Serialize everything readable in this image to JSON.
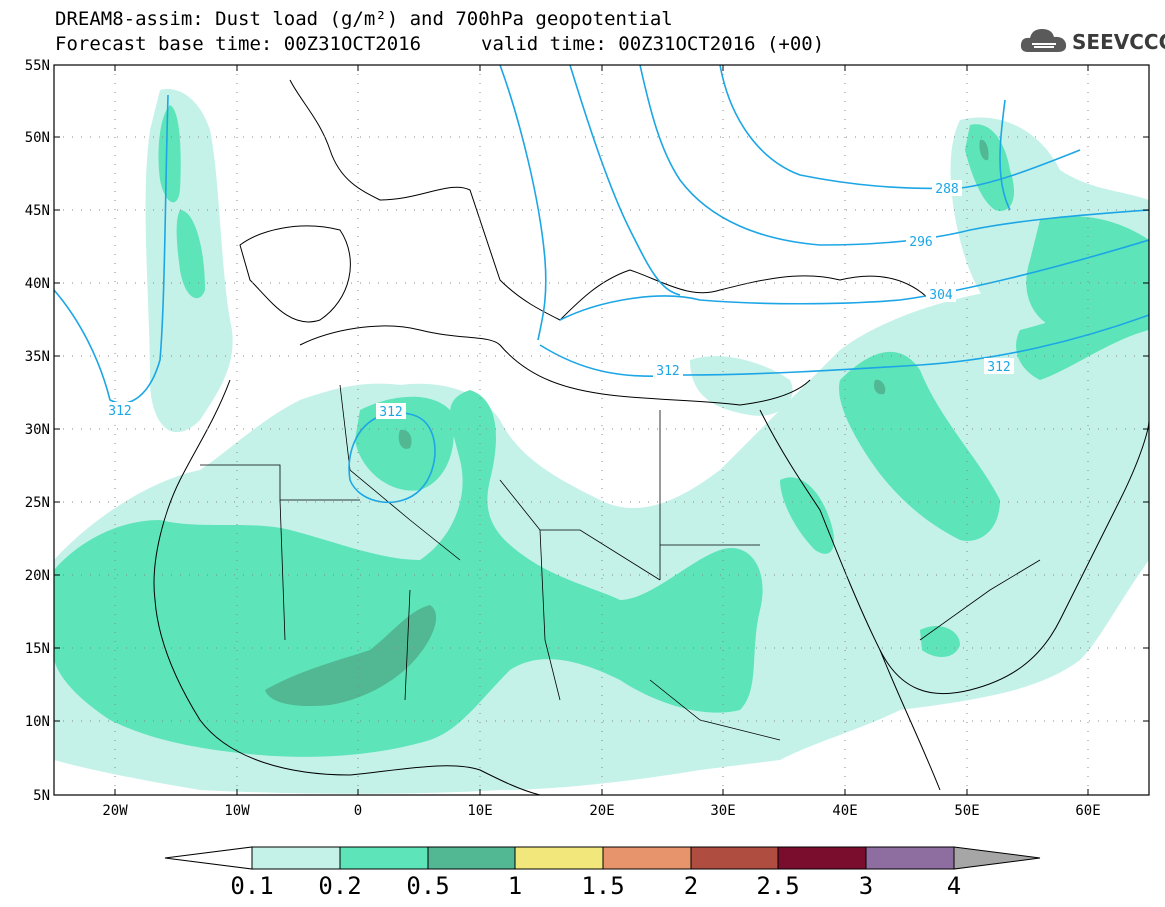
{
  "title": {
    "line1": "DREAM8-assim: Dust load (g/m²) and 700hPa geopotential",
    "line2": "Forecast base time: 00Z31OCT2016",
    "line2b": "valid time: 00Z31OCT2016 (+00)"
  },
  "logo": {
    "text": "SEEVCCC",
    "icon": "cloud-logo-icon"
  },
  "map": {
    "lon_range": [
      -25,
      65
    ],
    "lat_range": [
      5,
      55
    ],
    "lat_labels": [
      "55N",
      "50N",
      "45N",
      "40N",
      "35N",
      "30N",
      "25N",
      "20N",
      "15N",
      "10N",
      "5N"
    ],
    "lon_labels": [
      "20W",
      "10W",
      "0",
      "10E",
      "20E",
      "30E",
      "40E",
      "50E",
      "60E"
    ],
    "contour_labels": [
      "288",
      "296",
      "304",
      "312",
      "312",
      "312",
      "312"
    ]
  },
  "colorbar": {
    "labels": [
      "0.1",
      "0.2",
      "0.5",
      "1",
      "1.5",
      "2",
      "2.5",
      "3",
      "4"
    ],
    "colors": [
      "#c4f2e9",
      "#5de4b9",
      "#51b893",
      "#f2e77a",
      "#e7936c",
      "#b04d41",
      "#7a0c2d",
      "#8e6da0",
      "#a6a6a6"
    ]
  }
}
